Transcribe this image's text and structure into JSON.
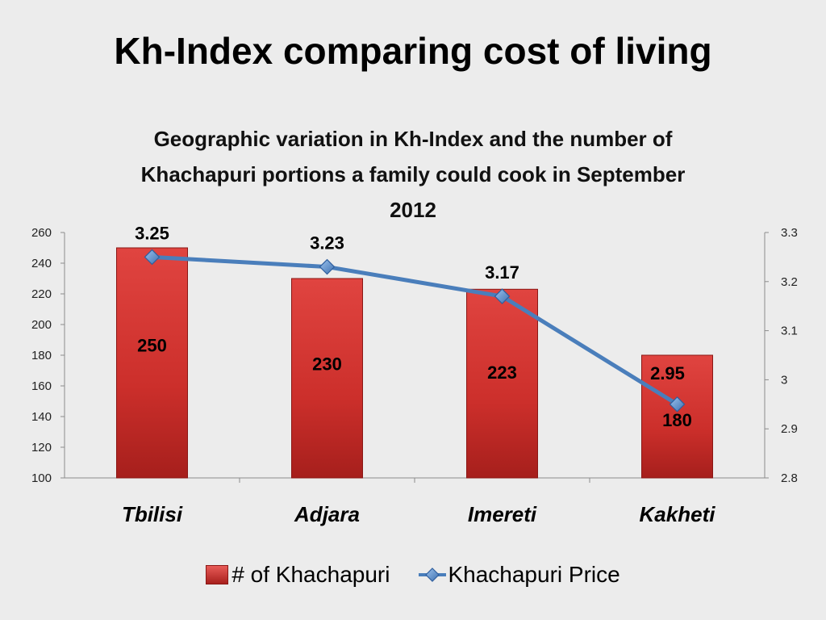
{
  "slide": {
    "title": "Kh-Index comparing cost of living"
  },
  "chart_data": {
    "type": "bar",
    "title": "Geographic variation in Kh-Index and the number of Khachapuri portions a family could cook in September 2012",
    "title_lines": [
      "Geographic variation in Kh-Index and the number of",
      "Khachapuri portions a family could cook in September",
      "2012"
    ],
    "categories": [
      "Tbilisi",
      "Adjara",
      "Imereti",
      "Kakheti"
    ],
    "series": [
      {
        "name": "# of Khachapuri",
        "type": "bar",
        "axis": "left",
        "values": [
          250,
          230,
          223,
          180
        ],
        "labels": [
          "250",
          "230",
          "223",
          "180"
        ],
        "color": "#d0312d"
      },
      {
        "name": "Khachapuri Price",
        "type": "line",
        "axis": "right",
        "values": [
          3.25,
          3.23,
          3.17,
          2.95
        ],
        "labels": [
          "3.25",
          "3.23",
          "3.17",
          "2.95"
        ],
        "color": "#4a7ebb"
      }
    ],
    "y_left": {
      "min": 100,
      "max": 260,
      "ticks": [
        "100",
        "120",
        "140",
        "160",
        "180",
        "200",
        "220",
        "240",
        "260"
      ]
    },
    "y_right": {
      "min": 2.8,
      "max": 3.3,
      "ticks": [
        "2.8",
        "2.9",
        "3",
        "3.1",
        "3.2",
        "3.3"
      ]
    },
    "grid": false,
    "legend_position": "bottom"
  },
  "legend": {
    "bar_label": "# of Khachapuri",
    "line_label": "Khachapuri Price"
  }
}
